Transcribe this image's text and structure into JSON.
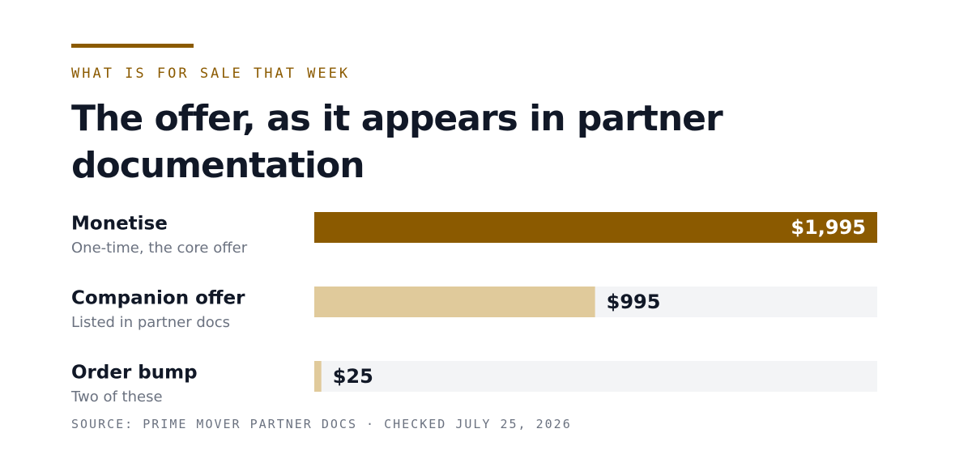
{
  "kicker": "WHAT IS FOR SALE THAT WEEK",
  "chart_data": {
    "type": "bar",
    "orientation": "horizontal",
    "title": "The offer, as it appears in partner documentation",
    "categories": [
      "Monetise",
      "Companion offer",
      "Order bump"
    ],
    "subtitles": [
      "One-time, the core offer",
      "Listed in partner docs",
      "Two of these"
    ],
    "values": [
      1995,
      995,
      25
    ],
    "value_labels": [
      "$1,995",
      "$995",
      "$25"
    ],
    "colors": [
      "#8b5a00",
      "#e0ca9b",
      "#e0ca9b"
    ]
  },
  "source": "SOURCE: PRIME MOVER PARTNER DOCS · CHECKED JULY 25, 2026"
}
